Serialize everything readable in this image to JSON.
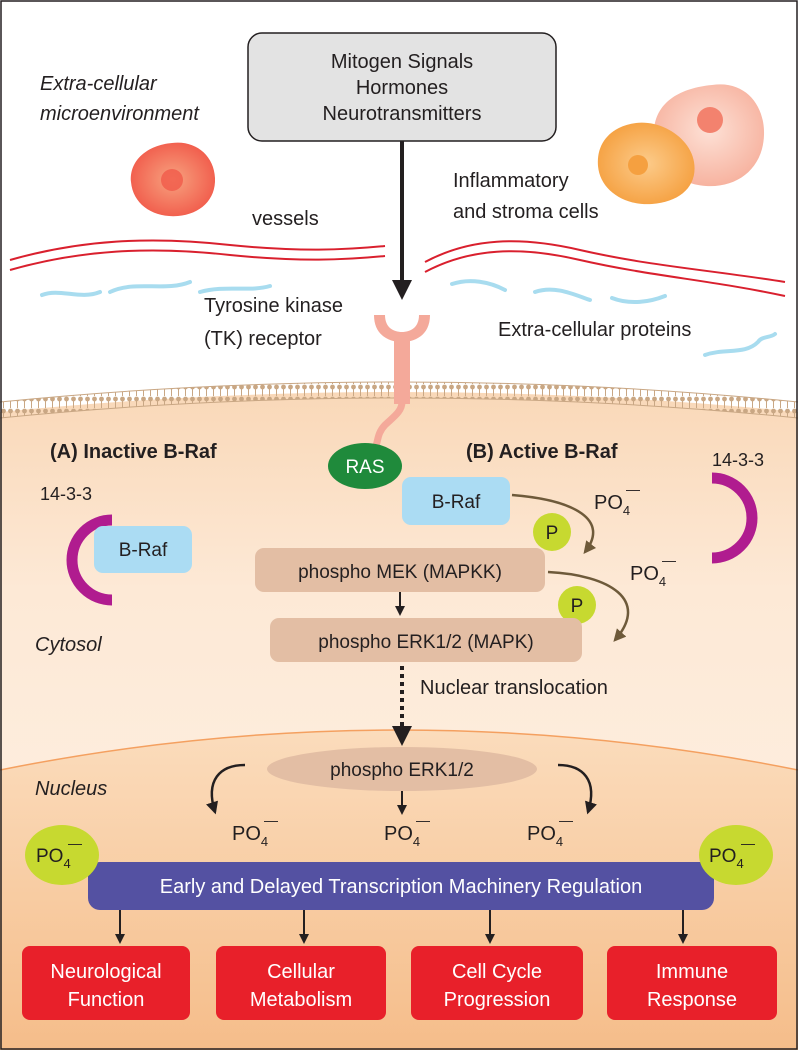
{
  "signals": {
    "line1": "Mitogen Signals",
    "line2": "Hormones",
    "line3": "Neurotransmitters"
  },
  "extracellular": {
    "label_line1": "Extra-cellular",
    "label_line2": "microenvironment",
    "vessels": "vessels",
    "inflammatory_line1": "Inflammatory",
    "inflammatory_line2": "and stroma cells",
    "receptor_line1": "Tyrosine kinase",
    "receptor_line2": "(TK) receptor",
    "proteins": "Extra-cellular proteins"
  },
  "cytosol": {
    "label": "Cytosol",
    "inactive_title": "(A) Inactive B-Raf",
    "active_title": "(B) Active B-Raf",
    "ras": "RAS",
    "braf": "B-Raf",
    "protein_1433_left": "14-3-3",
    "protein_1433_right": "14-3-3",
    "phospho_mek": "phospho MEK (MAPKK)",
    "phospho_erk": "phospho ERK1/2 (MAPK)",
    "p_badge": "P",
    "po4_base": "PO",
    "po4_sub": "4",
    "po4_charge": "—",
    "nuclear_translocation": "Nuclear translocation"
  },
  "nucleus": {
    "label": "Nucleus",
    "phospho_erk": "phospho ERK1/2",
    "transcription": "Early and Delayed Transcription Machinery Regulation"
  },
  "outcomes": [
    {
      "line1": "Neurological",
      "line2": "Function"
    },
    {
      "line1": "Cellular",
      "line2": "Metabolism"
    },
    {
      "line1": "Cell Cycle",
      "line2": "Progression"
    },
    {
      "line1": "Immune",
      "line2": "Response"
    }
  ],
  "colors": {
    "cytosol_fill": "#fde9d6",
    "nucleus_fill": "#f7c89b",
    "membrane": "#c9a784",
    "signal_box": "#e3e3e3",
    "vessel_red": "#d9202e",
    "protein_blue": "#a8dcef",
    "ras_green": "#1f8a3b",
    "braf_blue": "#abdcf3",
    "kinase_tan": "#e3bea4",
    "p_badge": "#c7d930",
    "protein_1433": "#b01c8f",
    "transcription_bar": "#5451a2",
    "outcome_red": "#e8202a",
    "receptor_pink": "#f4a99a",
    "arrow_brown": "#6e5a3a"
  }
}
